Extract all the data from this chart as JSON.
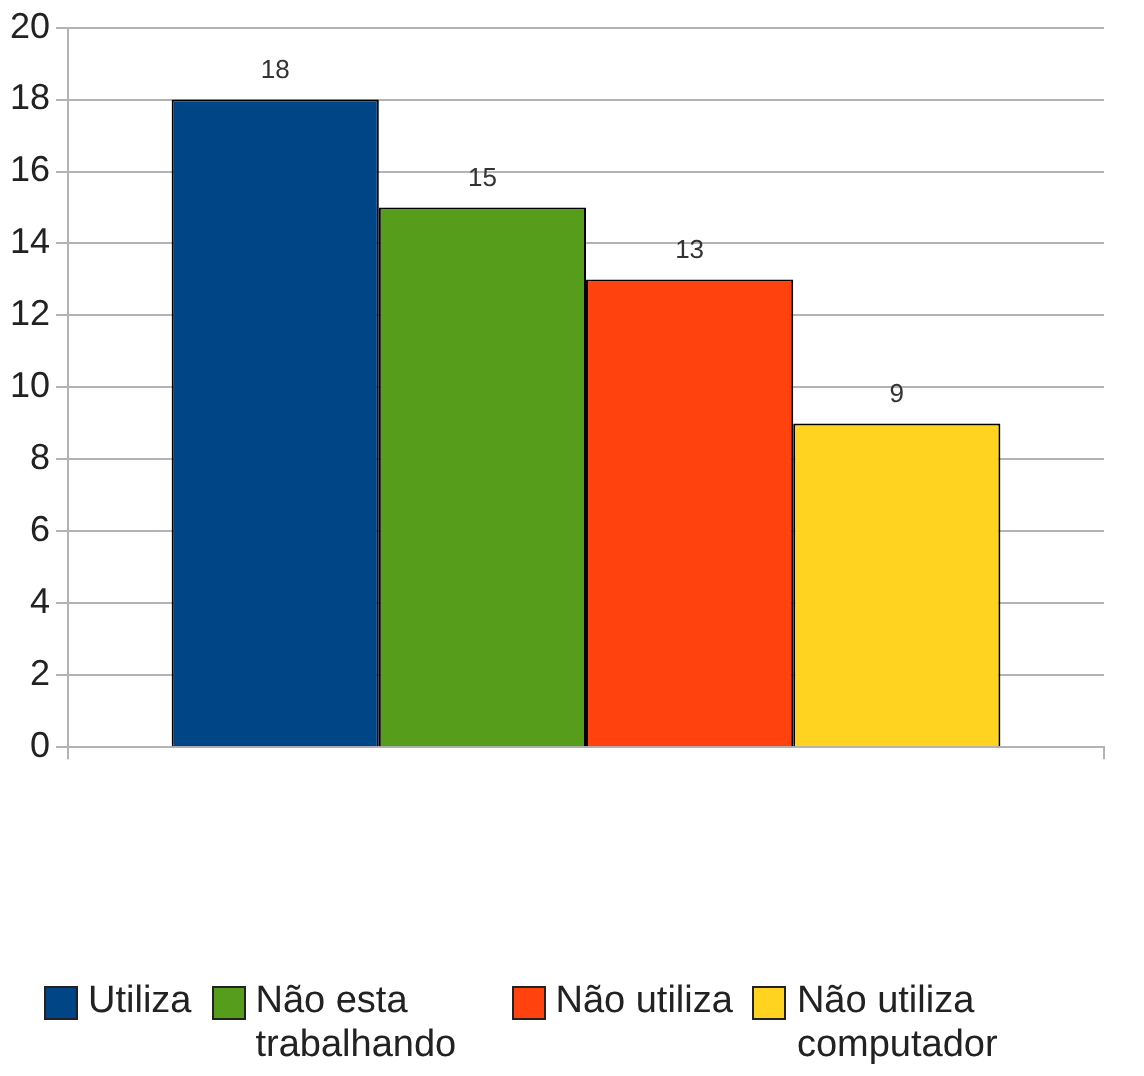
{
  "chart_data": {
    "type": "bar",
    "categories": [
      null
    ],
    "series": [
      {
        "name": "Utiliza",
        "color": "#004586",
        "values": [
          18
        ]
      },
      {
        "name": "Não esta trabalhando",
        "color": "#579d1c",
        "values": [
          15
        ]
      },
      {
        "name": "Não utiliza",
        "color": "#ff420e",
        "values": [
          13
        ]
      },
      {
        "name": "Não utiliza computador",
        "color": "#ffd320",
        "values": [
          9
        ]
      }
    ],
    "ylim": [
      0,
      20
    ],
    "yticks": [
      0,
      2,
      4,
      6,
      8,
      10,
      12,
      14,
      16,
      18,
      20
    ],
    "grid": "y",
    "legend": "bottom",
    "data_labels": true
  }
}
